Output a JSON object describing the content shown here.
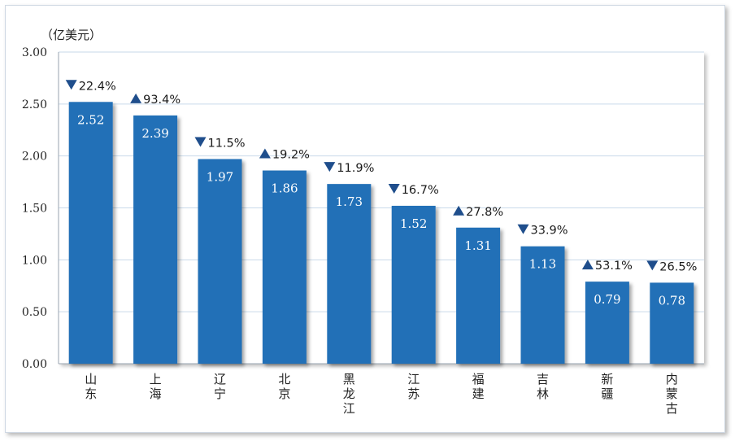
{
  "chart_data": {
    "type": "bar",
    "unit": "（亿美元）",
    "categories": [
      "山东",
      "上海",
      "辽宁",
      "北京",
      "黑龙江",
      "江苏",
      "福建",
      "吉林",
      "新疆",
      "内蒙古"
    ],
    "values": [
      2.52,
      2.39,
      1.97,
      1.86,
      1.73,
      1.52,
      1.31,
      1.13,
      0.79,
      0.78
    ],
    "value_labels": [
      "2.52",
      "2.39",
      "1.97",
      "1.86",
      "1.73",
      "1.52",
      "1.31",
      "1.13",
      "0.79",
      "0.78"
    ],
    "changes": [
      {
        "direction": "down",
        "text": "22.4%"
      },
      {
        "direction": "up",
        "text": "93.4%"
      },
      {
        "direction": "down",
        "text": "11.5%"
      },
      {
        "direction": "up",
        "text": "19.2%"
      },
      {
        "direction": "down",
        "text": "11.9%"
      },
      {
        "direction": "down",
        "text": "16.7%"
      },
      {
        "direction": "up",
        "text": "27.8%"
      },
      {
        "direction": "down",
        "text": "33.9%"
      },
      {
        "direction": "up",
        "text": "53.1%"
      },
      {
        "direction": "down",
        "text": "26.5%"
      }
    ],
    "ylim": [
      0,
      3
    ],
    "yticks": [
      "0.00",
      "0.50",
      "1.00",
      "1.50",
      "2.00",
      "2.50",
      "3.00"
    ],
    "grid": true,
    "colors": {
      "bar": "#2470b7",
      "grid": "#c9daea",
      "marker": "#1f4e8c",
      "axis": "#9aa5b1"
    }
  }
}
